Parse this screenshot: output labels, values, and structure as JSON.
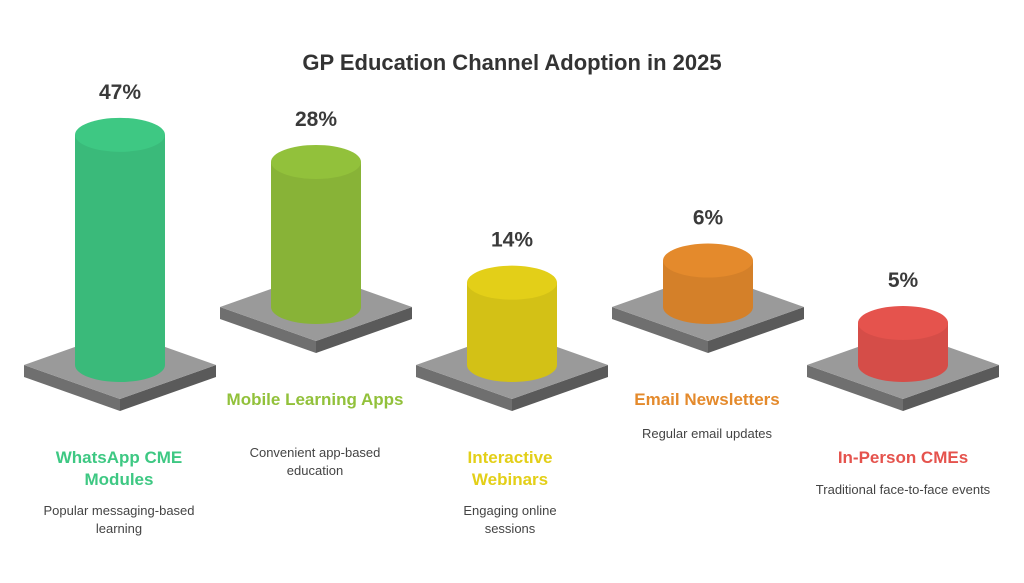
{
  "chart_data": {
    "type": "bar",
    "title": "GP Education Channel Adoption in 2025",
    "unit": "%",
    "categories": [
      "WhatsApp CME Modules",
      "Mobile Learning Apps",
      "Interactive Webinars",
      "Email Newsletters",
      "In-Person CMEs"
    ],
    "values": [
      47,
      28,
      14,
      6,
      5
    ],
    "value_labels": [
      "47%",
      "28%",
      "14%",
      "6%",
      "5%"
    ],
    "descriptions": [
      "Popular messaging-based learning",
      "Convenient app-based education",
      "Engaging online sessions",
      "Regular email updates",
      "Traditional face-to-face events"
    ],
    "colors": [
      "#3ec883",
      "#92c13b",
      "#e3cf18",
      "#e48a2c",
      "#e5534d"
    ]
  }
}
